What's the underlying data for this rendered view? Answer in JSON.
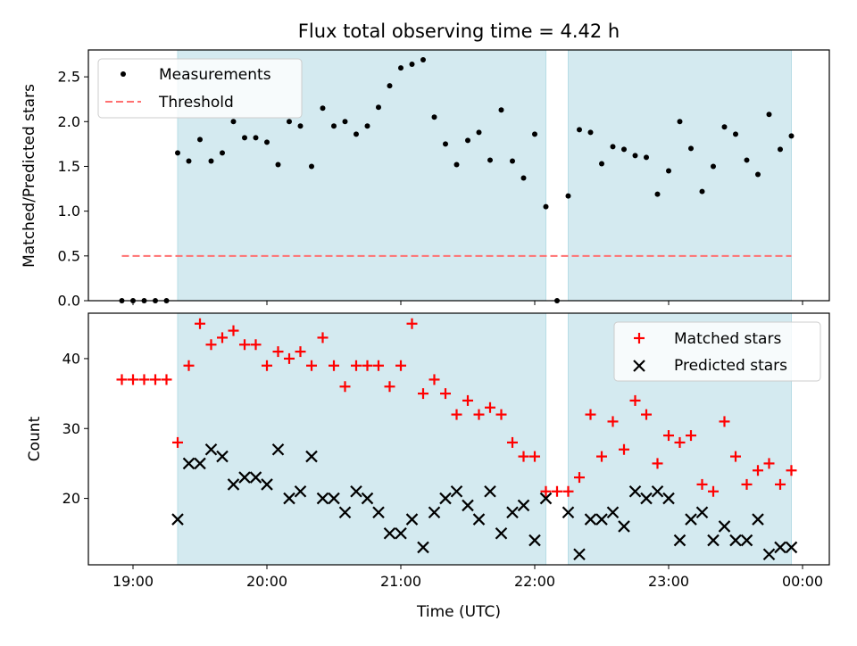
{
  "chart_data": [
    {
      "type": "scatter",
      "title": "Flux total observing time = 4.42 h",
      "xlabel": "",
      "ylabel": "Matched/Predicted stars",
      "ylim": [
        0,
        2.8
      ],
      "xlim": [
        "18:40",
        "00:12"
      ],
      "yticks": [
        0.0,
        0.5,
        1.0,
        1.5,
        2.0,
        2.5
      ],
      "ytick_labels": [
        "0.0",
        "0.5",
        "1.0",
        "1.5",
        "2.0",
        "2.5"
      ],
      "grid": false,
      "legend_position": "top-left",
      "shaded_intervals": [
        [
          "19:20",
          "22:05"
        ],
        [
          "22:15",
          "23:55"
        ]
      ],
      "series": [
        {
          "name": "Measurements",
          "marker": "dot",
          "color": "#000000",
          "points": [
            [
              "18:55",
              0.0
            ],
            [
              "19:00",
              0.0
            ],
            [
              "19:05",
              0.0
            ],
            [
              "19:10",
              0.0
            ],
            [
              "19:15",
              0.0
            ],
            [
              "19:20",
              1.65
            ],
            [
              "19:25",
              1.56
            ],
            [
              "19:30",
              1.8
            ],
            [
              "19:35",
              1.56
            ],
            [
              "19:40",
              1.65
            ],
            [
              "19:45",
              2.0
            ],
            [
              "19:50",
              1.82
            ],
            [
              "19:55",
              1.82
            ],
            [
              "20:00",
              1.77
            ],
            [
              "20:05",
              1.52
            ],
            [
              "20:10",
              2.0
            ],
            [
              "20:15",
              1.95
            ],
            [
              "20:20",
              1.5
            ],
            [
              "20:25",
              2.15
            ],
            [
              "20:30",
              1.95
            ],
            [
              "20:35",
              2.0
            ],
            [
              "20:40",
              1.86
            ],
            [
              "20:45",
              1.95
            ],
            [
              "20:50",
              2.16
            ],
            [
              "20:55",
              2.4
            ],
            [
              "21:00",
              2.6
            ],
            [
              "21:05",
              2.64
            ],
            [
              "21:10",
              2.69
            ],
            [
              "21:15",
              2.05
            ],
            [
              "21:20",
              1.75
            ],
            [
              "21:25",
              1.52
            ],
            [
              "21:30",
              1.79
            ],
            [
              "21:35",
              1.88
            ],
            [
              "21:40",
              1.57
            ],
            [
              "21:45",
              2.13
            ],
            [
              "21:50",
              1.56
            ],
            [
              "21:55",
              1.37
            ],
            [
              "22:00",
              1.86
            ],
            [
              "22:05",
              1.05
            ],
            [
              "22:10",
              0.0
            ],
            [
              "22:15",
              1.17
            ],
            [
              "22:20",
              1.91
            ],
            [
              "22:25",
              1.88
            ],
            [
              "22:30",
              1.53
            ],
            [
              "22:35",
              1.72
            ],
            [
              "22:40",
              1.69
            ],
            [
              "22:45",
              1.62
            ],
            [
              "22:50",
              1.6
            ],
            [
              "22:55",
              1.19
            ],
            [
              "23:00",
              1.45
            ],
            [
              "23:05",
              2.0
            ],
            [
              "23:10",
              1.7
            ],
            [
              "23:15",
              1.22
            ],
            [
              "23:20",
              1.5
            ],
            [
              "23:25",
              1.94
            ],
            [
              "23:30",
              1.86
            ],
            [
              "23:35",
              1.57
            ],
            [
              "23:40",
              1.41
            ],
            [
              "23:45",
              2.08
            ],
            [
              "23:50",
              1.69
            ],
            [
              "23:55",
              1.84
            ]
          ]
        },
        {
          "name": "Threshold",
          "marker": "dashed-line",
          "color": "#ff7070",
          "points": [
            [
              "18:55",
              0.5
            ],
            [
              "23:55",
              0.5
            ]
          ]
        }
      ]
    },
    {
      "type": "scatter",
      "title": "",
      "xlabel": "Time (UTC)",
      "ylabel": "Count",
      "ylim": [
        10.5,
        46.5
      ],
      "xlim": [
        "18:40",
        "00:12"
      ],
      "yticks": [
        20,
        30,
        40
      ],
      "ytick_labels": [
        "20",
        "30",
        "40"
      ],
      "x_tick_labels": [
        "19:00",
        "20:00",
        "21:00",
        "22:00",
        "23:00",
        "00:00"
      ],
      "grid": false,
      "legend_position": "top-right",
      "shaded_intervals": [
        [
          "19:20",
          "22:05"
        ],
        [
          "22:15",
          "23:55"
        ]
      ],
      "series": [
        {
          "name": "Matched stars",
          "marker": "plus",
          "color": "#ff0000",
          "points": [
            [
              "18:55",
              37
            ],
            [
              "19:00",
              37
            ],
            [
              "19:05",
              37
            ],
            [
              "19:10",
              37
            ],
            [
              "19:15",
              37
            ],
            [
              "19:20",
              28
            ],
            [
              "19:25",
              39
            ],
            [
              "19:30",
              45
            ],
            [
              "19:35",
              42
            ],
            [
              "19:40",
              43
            ],
            [
              "19:45",
              44
            ],
            [
              "19:50",
              42
            ],
            [
              "19:55",
              42
            ],
            [
              "20:00",
              39
            ],
            [
              "20:05",
              41
            ],
            [
              "20:10",
              40
            ],
            [
              "20:15",
              41
            ],
            [
              "20:20",
              39
            ],
            [
              "20:25",
              43
            ],
            [
              "20:30",
              39
            ],
            [
              "20:35",
              36
            ],
            [
              "20:40",
              39
            ],
            [
              "20:45",
              39
            ],
            [
              "20:50",
              39
            ],
            [
              "20:55",
              36
            ],
            [
              "21:00",
              39
            ],
            [
              "21:05",
              45
            ],
            [
              "21:10",
              35
            ],
            [
              "21:15",
              37
            ],
            [
              "21:20",
              35
            ],
            [
              "21:25",
              32
            ],
            [
              "21:30",
              34
            ],
            [
              "21:35",
              32
            ],
            [
              "21:40",
              33
            ],
            [
              "21:45",
              32
            ],
            [
              "21:50",
              28
            ],
            [
              "21:55",
              26
            ],
            [
              "22:00",
              26
            ],
            [
              "22:05",
              21
            ],
            [
              "22:10",
              21
            ],
            [
              "22:15",
              21
            ],
            [
              "22:20",
              23
            ],
            [
              "22:25",
              32
            ],
            [
              "22:30",
              26
            ],
            [
              "22:35",
              31
            ],
            [
              "22:40",
              27
            ],
            [
              "22:45",
              34
            ],
            [
              "22:50",
              32
            ],
            [
              "22:55",
              25
            ],
            [
              "23:00",
              29
            ],
            [
              "23:05",
              28
            ],
            [
              "23:10",
              29
            ],
            [
              "23:15",
              22
            ],
            [
              "23:20",
              21
            ],
            [
              "23:25",
              31
            ],
            [
              "23:30",
              26
            ],
            [
              "23:35",
              22
            ],
            [
              "23:40",
              24
            ],
            [
              "23:45",
              25
            ],
            [
              "23:50",
              22
            ],
            [
              "23:55",
              24
            ]
          ]
        },
        {
          "name": "Predicted stars",
          "marker": "x",
          "color": "#000000",
          "points": [
            [
              "19:20",
              17
            ],
            [
              "19:25",
              25
            ],
            [
              "19:30",
              25
            ],
            [
              "19:35",
              27
            ],
            [
              "19:40",
              26
            ],
            [
              "19:45",
              22
            ],
            [
              "19:50",
              23
            ],
            [
              "19:55",
              23
            ],
            [
              "20:00",
              22
            ],
            [
              "20:05",
              27
            ],
            [
              "20:10",
              20
            ],
            [
              "20:15",
              21
            ],
            [
              "20:20",
              26
            ],
            [
              "20:25",
              20
            ],
            [
              "20:30",
              20
            ],
            [
              "20:35",
              18
            ],
            [
              "20:40",
              21
            ],
            [
              "20:45",
              20
            ],
            [
              "20:50",
              18
            ],
            [
              "20:55",
              15
            ],
            [
              "21:00",
              15
            ],
            [
              "21:05",
              17
            ],
            [
              "21:10",
              13
            ],
            [
              "21:15",
              18
            ],
            [
              "21:20",
              20
            ],
            [
              "21:25",
              21
            ],
            [
              "21:30",
              19
            ],
            [
              "21:35",
              17
            ],
            [
              "21:40",
              21
            ],
            [
              "21:45",
              15
            ],
            [
              "21:50",
              18
            ],
            [
              "21:55",
              19
            ],
            [
              "22:00",
              14
            ],
            [
              "22:05",
              20
            ],
            [
              "22:15",
              18
            ],
            [
              "22:20",
              12
            ],
            [
              "22:25",
              17
            ],
            [
              "22:30",
              17
            ],
            [
              "22:35",
              18
            ],
            [
              "22:40",
              16
            ],
            [
              "22:45",
              21
            ],
            [
              "22:50",
              20
            ],
            [
              "22:55",
              21
            ],
            [
              "23:00",
              20
            ],
            [
              "23:05",
              14
            ],
            [
              "23:10",
              17
            ],
            [
              "23:15",
              18
            ],
            [
              "23:20",
              14
            ],
            [
              "23:25",
              16
            ],
            [
              "23:30",
              14
            ],
            [
              "23:35",
              14
            ],
            [
              "23:40",
              17
            ],
            [
              "23:45",
              12
            ],
            [
              "23:50",
              13
            ],
            [
              "23:55",
              13
            ]
          ]
        }
      ]
    }
  ],
  "colors": {
    "shade": "#d4eaf0",
    "shade_edge": "#b8dde6",
    "threshold": "#ff7070",
    "matched": "#ff0000",
    "predicted": "#000000"
  }
}
